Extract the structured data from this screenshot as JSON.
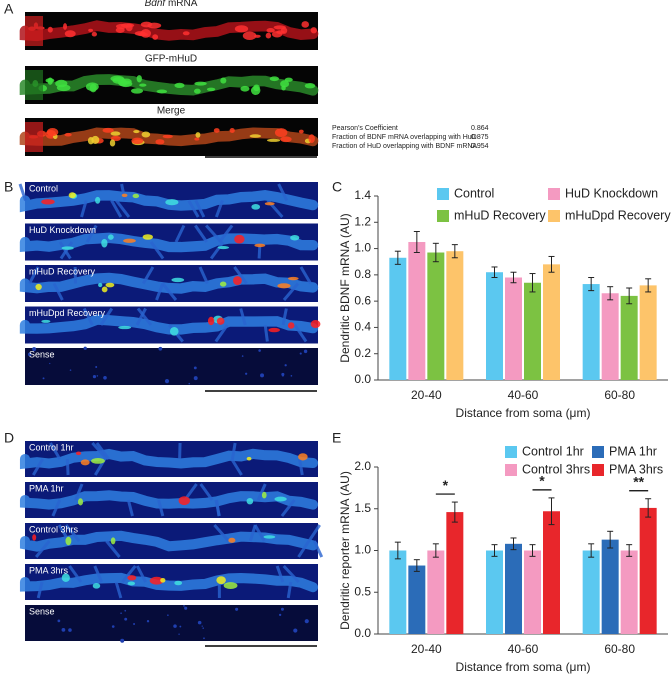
{
  "panel_labels": [
    "A",
    "B",
    "C",
    "D",
    "E"
  ],
  "panel_a": {
    "images": [
      {
        "title_italic": "Bdnf",
        "title": "mRNA"
      },
      {
        "title": "GFP-mHuD"
      },
      {
        "title": "Merge"
      }
    ],
    "stats": [
      {
        "label": "Pearson's Coefficient",
        "value": 0.864
      },
      {
        "label": "Fraction of BDNF mRNA overlapping with HuD",
        "value": 0.875
      },
      {
        "label": "Fraction of HuD overlapping with BDNF mRNA",
        "value": 0.954
      }
    ]
  },
  "panel_b": {
    "images": [
      "Control",
      "HuD Knockdown",
      "mHuD Recovery",
      "mHuDpd Recovery",
      "Sense"
    ]
  },
  "panel_d": {
    "images": [
      "Control 1hr",
      "PMA 1hr",
      "Control 3hrs",
      "PMA 3hrs",
      "Sense"
    ]
  },
  "chart_data": [
    {
      "type": "bar",
      "y_label": "Dendritic BDNF mRNA (AU)",
      "x_label": "Distance from soma (μm)",
      "categories": [
        "20-40",
        "40-60",
        "60-80"
      ],
      "series": [
        {
          "name": "Control",
          "color": "#5bc8f0",
          "values": [
            0.93,
            0.82,
            0.73
          ],
          "errors": [
            0.05,
            0.04,
            0.05
          ]
        },
        {
          "name": "HuD Knockdown",
          "color": "#f49ac1",
          "values": [
            1.05,
            0.78,
            0.66
          ],
          "errors": [
            0.08,
            0.04,
            0.05
          ]
        },
        {
          "name": "mHuD Recovery",
          "color": "#7cc242",
          "values": [
            0.97,
            0.74,
            0.64
          ],
          "errors": [
            0.07,
            0.07,
            0.06
          ]
        },
        {
          "name": "mHuDpd Recovery",
          "color": "#fdc46a",
          "values": [
            0.98,
            0.88,
            0.72
          ],
          "errors": [
            0.05,
            0.06,
            0.05
          ]
        }
      ],
      "ylim": [
        0,
        1.4
      ],
      "yticks": [
        {
          "value": 0,
          "label": "0.0"
        },
        0.2,
        0.4,
        0.6,
        0.8,
        {
          "value": 1,
          "label": "1.0"
        },
        1.2,
        1.4
      ]
    },
    {
      "type": "bar",
      "y_label": "Dendritic reporter mRNA (AU)",
      "x_label": "Distance from soma (μm)",
      "categories": [
        "20-40",
        "40-60",
        "60-80"
      ],
      "series": [
        {
          "name": "Control 1hr",
          "color": "#5bc8f0",
          "values": [
            1.0,
            1.0,
            1.0
          ],
          "errors": [
            0.1,
            0.07,
            0.08
          ]
        },
        {
          "name": "PMA 1hr",
          "color": "#2b6cb8",
          "values": [
            0.82,
            1.08,
            1.13
          ],
          "errors": [
            0.07,
            0.07,
            0.1
          ]
        },
        {
          "name": "Control 3hrs",
          "color": "#f49ac1",
          "values": [
            1.0,
            1.0,
            1.0
          ],
          "errors": [
            0.08,
            0.07,
            0.07
          ]
        },
        {
          "name": "PMA 3hrs",
          "color": "#e8262b",
          "values": [
            1.46,
            1.47,
            1.51
          ],
          "errors": [
            0.12,
            0.16,
            0.11
          ]
        }
      ],
      "significance": [
        "*",
        "*",
        "**"
      ],
      "ylim": [
        0,
        2
      ],
      "yticks": [
        {
          "value": 0,
          "label": "0.0"
        },
        0.5,
        {
          "value": 1,
          "label": "1.0"
        },
        1.5,
        {
          "value": 2,
          "label": "2.0"
        }
      ]
    }
  ]
}
